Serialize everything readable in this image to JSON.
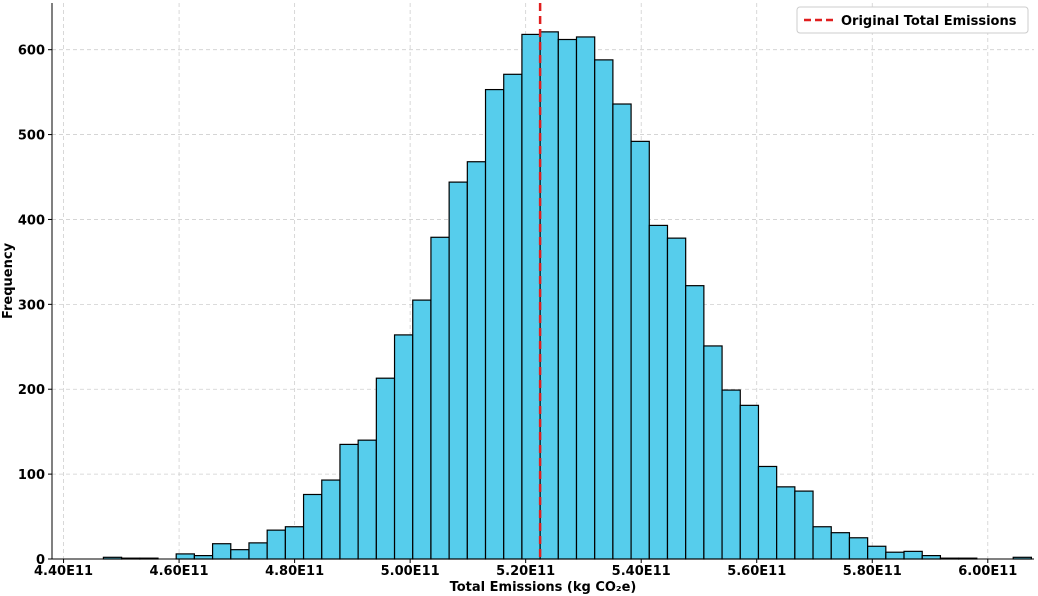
{
  "chart_data": {
    "type": "bar",
    "title": "",
    "xlabel": "Total Emissions (kg CO₂e)",
    "ylabel": "Frequency",
    "xlim": [
      438000000000.0,
      608000000000.0
    ],
    "ylim": [
      0,
      655
    ],
    "x_ticks": [
      440000000000.0,
      460000000000.0,
      480000000000.0,
      500000000000.0,
      520000000000.0,
      540000000000.0,
      560000000000.0,
      580000000000.0,
      600000000000.0
    ],
    "x_tick_labels": [
      "4.40E11",
      "4.60E11",
      "4.80E11",
      "5.00E11",
      "5.20E11",
      "5.40E11",
      "5.60E11",
      "5.80E11",
      "6.00E11"
    ],
    "y_ticks": [
      0,
      100,
      200,
      300,
      400,
      500,
      600
    ],
    "y_tick_labels": [
      "0",
      "100",
      "200",
      "300",
      "400",
      "500",
      "600"
    ],
    "grid": true,
    "bin_start": 443750000000.0,
    "bin_width": 3150000000.0,
    "values": [
      0,
      2,
      1,
      1,
      0,
      6,
      4,
      18,
      11,
      19,
      34,
      38,
      76,
      93,
      135,
      140,
      213,
      264,
      305,
      379,
      444,
      468,
      553,
      571,
      618,
      621,
      612,
      615,
      588,
      536,
      492,
      393,
      378,
      322,
      251,
      199,
      181,
      109,
      85,
      80,
      38,
      31,
      25,
      15,
      8,
      9,
      4,
      1,
      1,
      0,
      0,
      2
    ],
    "bar_color": "#56cdec",
    "bar_edge_color": "#000000",
    "reference_line": {
      "x": 522500000000.0,
      "label": "Original Total Emissions",
      "color": "#e01e1e",
      "style": "dashed"
    },
    "legend": {
      "placement": "top-right",
      "entries": [
        "Original Total Emissions"
      ]
    }
  }
}
